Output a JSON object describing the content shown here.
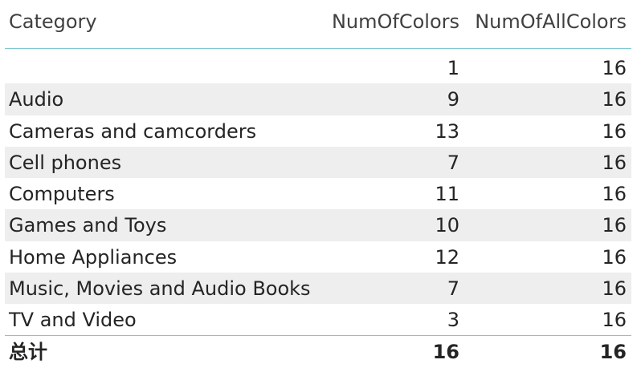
{
  "chart_data": {
    "type": "table",
    "columns": [
      "Category",
      "NumOfColors",
      "NumOfAllColors"
    ],
    "rows": [
      {
        "category": "",
        "num_of_colors": "1",
        "num_of_all_colors": "16"
      },
      {
        "category": "Audio",
        "num_of_colors": "9",
        "num_of_all_colors": "16"
      },
      {
        "category": "Cameras and camcorders",
        "num_of_colors": "13",
        "num_of_all_colors": "16"
      },
      {
        "category": "Cell phones",
        "num_of_colors": "7",
        "num_of_all_colors": "16"
      },
      {
        "category": "Computers",
        "num_of_colors": "11",
        "num_of_all_colors": "16"
      },
      {
        "category": "Games and Toys",
        "num_of_colors": "10",
        "num_of_all_colors": "16"
      },
      {
        "category": "Home Appliances",
        "num_of_colors": "12",
        "num_of_all_colors": "16"
      },
      {
        "category": "Music, Movies and Audio Books",
        "num_of_colors": "7",
        "num_of_all_colors": "16"
      },
      {
        "category": "TV and Video",
        "num_of_colors": "3",
        "num_of_all_colors": "16"
      }
    ],
    "total": {
      "label": "总计",
      "num_of_colors": "16",
      "num_of_all_colors": "16"
    }
  },
  "colors": {
    "divider": "#7fc7d3",
    "alt_row": "#eeeeee",
    "text": "#252423"
  }
}
